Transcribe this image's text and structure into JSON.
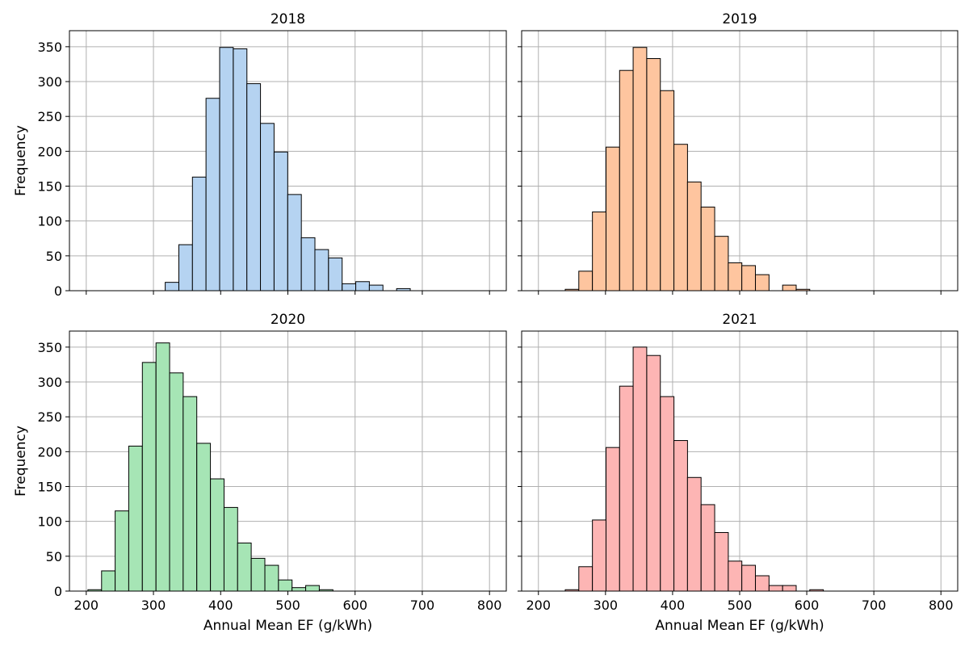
{
  "chart_data": {
    "type": "bar",
    "subtype": "histogram",
    "layout": "2x2 grid, shared x and y axes",
    "grid": true,
    "bin_width": 20.25,
    "x_ticks": [
      200,
      300,
      400,
      500,
      600,
      700,
      800
    ],
    "y_ticks": [
      0,
      50,
      100,
      150,
      200,
      250,
      300,
      350
    ],
    "xlim": [
      175,
      825
    ],
    "ylim": [
      0,
      373
    ],
    "xlabel": "Annual Mean EF (g/kWh)",
    "ylabel": "Frequency",
    "panels": [
      {
        "title": "2018",
        "color": "#b5d3f1",
        "bins": [
          {
            "x0": 317.5,
            "value": 12
          },
          {
            "x0": 337.8,
            "value": 66
          },
          {
            "x0": 358.0,
            "value": 163
          },
          {
            "x0": 378.2,
            "value": 276
          },
          {
            "x0": 398.5,
            "value": 349
          },
          {
            "x0": 418.8,
            "value": 347
          },
          {
            "x0": 439.0,
            "value": 297
          },
          {
            "x0": 459.2,
            "value": 240
          },
          {
            "x0": 479.5,
            "value": 199
          },
          {
            "x0": 499.8,
            "value": 138
          },
          {
            "x0": 520.0,
            "value": 76
          },
          {
            "x0": 540.2,
            "value": 59
          },
          {
            "x0": 560.5,
            "value": 47
          },
          {
            "x0": 580.8,
            "value": 10
          },
          {
            "x0": 601.0,
            "value": 13
          },
          {
            "x0": 621.2,
            "value": 8
          },
          {
            "x0": 641.5,
            "value": 0
          },
          {
            "x0": 661.8,
            "value": 3
          }
        ]
      },
      {
        "title": "2019",
        "color": "#fec59f",
        "bins": [
          {
            "x0": 240.0,
            "value": 2
          },
          {
            "x0": 260.2,
            "value": 28
          },
          {
            "x0": 280.5,
            "value": 113
          },
          {
            "x0": 300.8,
            "value": 206
          },
          {
            "x0": 321.0,
            "value": 316
          },
          {
            "x0": 341.2,
            "value": 349
          },
          {
            "x0": 361.5,
            "value": 333
          },
          {
            "x0": 381.8,
            "value": 287
          },
          {
            "x0": 402.0,
            "value": 210
          },
          {
            "x0": 422.2,
            "value": 156
          },
          {
            "x0": 442.5,
            "value": 120
          },
          {
            "x0": 462.8,
            "value": 78
          },
          {
            "x0": 483.0,
            "value": 40
          },
          {
            "x0": 503.2,
            "value": 36
          },
          {
            "x0": 523.5,
            "value": 23
          },
          {
            "x0": 543.8,
            "value": 0
          },
          {
            "x0": 564.0,
            "value": 8
          },
          {
            "x0": 584.2,
            "value": 2
          }
        ]
      },
      {
        "title": "2020",
        "color": "#a6e5b5",
        "bins": [
          {
            "x0": 202.5,
            "value": 2
          },
          {
            "x0": 222.8,
            "value": 29
          },
          {
            "x0": 243.0,
            "value": 115
          },
          {
            "x0": 263.2,
            "value": 208
          },
          {
            "x0": 283.5,
            "value": 328
          },
          {
            "x0": 303.8,
            "value": 356
          },
          {
            "x0": 324.0,
            "value": 313
          },
          {
            "x0": 344.2,
            "value": 279
          },
          {
            "x0": 364.5,
            "value": 212
          },
          {
            "x0": 384.8,
            "value": 161
          },
          {
            "x0": 405.0,
            "value": 120
          },
          {
            "x0": 425.2,
            "value": 69
          },
          {
            "x0": 445.5,
            "value": 47
          },
          {
            "x0": 465.8,
            "value": 37
          },
          {
            "x0": 486.0,
            "value": 16
          },
          {
            "x0": 506.2,
            "value": 5
          },
          {
            "x0": 526.5,
            "value": 8
          },
          {
            "x0": 546.8,
            "value": 2
          }
        ]
      },
      {
        "title": "2021",
        "color": "#fdb5b4",
        "bins": [
          {
            "x0": 240.0,
            "value": 2
          },
          {
            "x0": 260.2,
            "value": 35
          },
          {
            "x0": 280.5,
            "value": 102
          },
          {
            "x0": 300.8,
            "value": 206
          },
          {
            "x0": 321.0,
            "value": 294
          },
          {
            "x0": 341.2,
            "value": 350
          },
          {
            "x0": 361.5,
            "value": 338
          },
          {
            "x0": 381.8,
            "value": 279
          },
          {
            "x0": 402.0,
            "value": 216
          },
          {
            "x0": 422.2,
            "value": 163
          },
          {
            "x0": 442.5,
            "value": 124
          },
          {
            "x0": 462.8,
            "value": 84
          },
          {
            "x0": 483.0,
            "value": 43
          },
          {
            "x0": 503.2,
            "value": 37
          },
          {
            "x0": 523.5,
            "value": 22
          },
          {
            "x0": 543.8,
            "value": 8
          },
          {
            "x0": 564.0,
            "value": 8
          },
          {
            "x0": 584.2,
            "value": 0
          },
          {
            "x0": 604.5,
            "value": 2
          }
        ]
      }
    ]
  }
}
